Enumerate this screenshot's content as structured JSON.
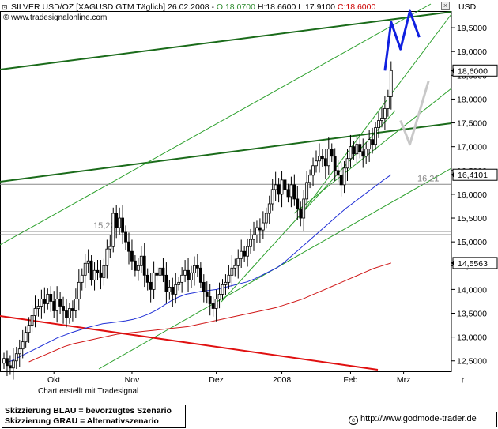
{
  "header": {
    "title_main": "SILVER USD/OZ [XAGUSD GTM  Täglich] 26.02.2008 - ",
    "change": "O:18.0700",
    "high_low": "H:18.6600 L:17.9100",
    "close": "C:18.6000",
    "source": "© www.tradesignalonline.com",
    "close_button": "×"
  },
  "unit": "USD",
  "footer": {
    "credit": "Chart erstellt mit Tradesignal",
    "legend_blue": "Skizzierung BLAU = bevorzugtes Szenario",
    "legend_grey": "Skizzierung GRAU = Alternativszenario",
    "copyright_symbol": "c",
    "website": "http://www.godmode-trader.de"
  },
  "chart_data": {
    "type": "candlestick",
    "y_range": [
      12.28,
      19.85
    ],
    "y_ticks": [
      "12,5000",
      "13,0000",
      "13,5000",
      "14,0000",
      "14,5000",
      "15,0000",
      "15,5000",
      "16,0000",
      "16,5000",
      "17,0000",
      "17,5000",
      "18,0000",
      "18,5000",
      "19,0000",
      "19,5000"
    ],
    "y_tick_values": [
      12.5,
      13.0,
      13.5,
      14.0,
      14.5,
      15.0,
      15.5,
      16.0,
      16.5,
      17.0,
      17.5,
      18.0,
      18.5,
      19.0,
      19.5
    ],
    "x_labels": [
      "Okt",
      "Nov",
      "Dez",
      "2008",
      "Feb",
      "Mrz"
    ],
    "x_label_index": [
      16,
      41,
      68,
      89,
      111,
      128
    ],
    "x_arrow": "↑",
    "price_tags": [
      {
        "label": "18,6000",
        "value": 18.6
      },
      {
        "label": "16,4101",
        "value": 16.41
      },
      {
        "label": "14,5563",
        "value": 14.556
      }
    ],
    "closes": [
      12.55,
      12.4,
      12.35,
      12.5,
      12.65,
      12.75,
      12.9,
      13.1,
      13.25,
      13.45,
      13.6,
      13.65,
      13.8,
      13.7,
      13.9,
      13.75,
      13.55,
      13.8,
      13.65,
      13.55,
      13.4,
      13.6,
      13.55,
      13.8,
      14.15,
      14.3,
      14.55,
      14.6,
      14.2,
      14.4,
      14.35,
      14.25,
      14.5,
      14.85,
      14.9,
      15.6,
      15.3,
      15.5,
      15.2,
      15.0,
      14.8,
      14.6,
      14.4,
      14.5,
      14.7,
      14.3,
      14.15,
      14.0,
      14.35,
      14.3,
      14.45,
      14.3,
      13.95,
      14.05,
      13.9,
      14.1,
      14.15,
      14.3,
      14.4,
      14.2,
      14.35,
      14.5,
      14.45,
      14.15,
      13.95,
      13.85,
      13.7,
      13.6,
      13.8,
      13.9,
      14.1,
      14.15,
      14.3,
      14.45,
      14.5,
      14.65,
      14.8,
      14.7,
      14.9,
      15.05,
      15.15,
      15.3,
      15.25,
      15.4,
      15.6,
      15.8,
      16.1,
      16.2,
      16.0,
      16.3,
      16.1,
      15.95,
      16.2,
      15.9,
      15.7,
      15.5,
      15.9,
      16.25,
      16.4,
      16.6,
      16.7,
      16.8,
      16.75,
      16.6,
      16.95,
      16.8,
      16.5,
      16.4,
      16.2,
      16.55,
      16.75,
      17.0,
      16.85,
      17.05,
      16.9,
      16.8,
      16.95,
      17.15,
      17.05,
      17.4,
      17.55,
      17.6,
      17.8,
      18.05,
      18.6
    ],
    "ma_blue": [
      12.45,
      12.5,
      12.58,
      12.66,
      12.74,
      12.82,
      12.9,
      12.98,
      13.04,
      13.1,
      13.15,
      13.2,
      13.24,
      13.28,
      13.3,
      13.32,
      13.34,
      13.37,
      13.42,
      13.48,
      13.56,
      13.66,
      13.76,
      13.84,
      13.9,
      13.93,
      13.96,
      13.98,
      14.0,
      14.04,
      14.08,
      14.12,
      14.16,
      14.22,
      14.3,
      14.38,
      14.46,
      14.58,
      14.72,
      14.86,
      15.0,
      15.14,
      15.28,
      15.42,
      15.56,
      15.7,
      15.82,
      15.94,
      16.06,
      16.18,
      16.3,
      16.41
    ],
    "ma_red": [
      12.48,
      12.56,
      12.64,
      12.72,
      12.8,
      12.86,
      12.9,
      12.94,
      12.98,
      13.02,
      13.06,
      13.08,
      13.1,
      13.12,
      13.14,
      13.16,
      13.18,
      13.2,
      13.22,
      13.26,
      13.3,
      13.34,
      13.38,
      13.42,
      13.46,
      13.5,
      13.54,
      13.58,
      13.62,
      13.68,
      13.74,
      13.8,
      13.88,
      13.96,
      14.04,
      14.12,
      14.2,
      14.28,
      14.36,
      14.44,
      14.5,
      14.556
    ],
    "horizontal_levels": [
      {
        "label": "16,21",
        "value": 16.21
      },
      {
        "label": "15,22",
        "value": 15.22
      },
      {
        "label": "",
        "value": 15.15
      }
    ],
    "scenario_blue": [
      [
        122,
        18.6
      ],
      [
        124,
        19.62
      ],
      [
        127,
        19.05
      ],
      [
        130,
        19.85
      ],
      [
        133,
        19.3
      ]
    ],
    "scenario_grey": [
      [
        127,
        17.55
      ],
      [
        130,
        17.05
      ],
      [
        136,
        18.38
      ]
    ]
  }
}
